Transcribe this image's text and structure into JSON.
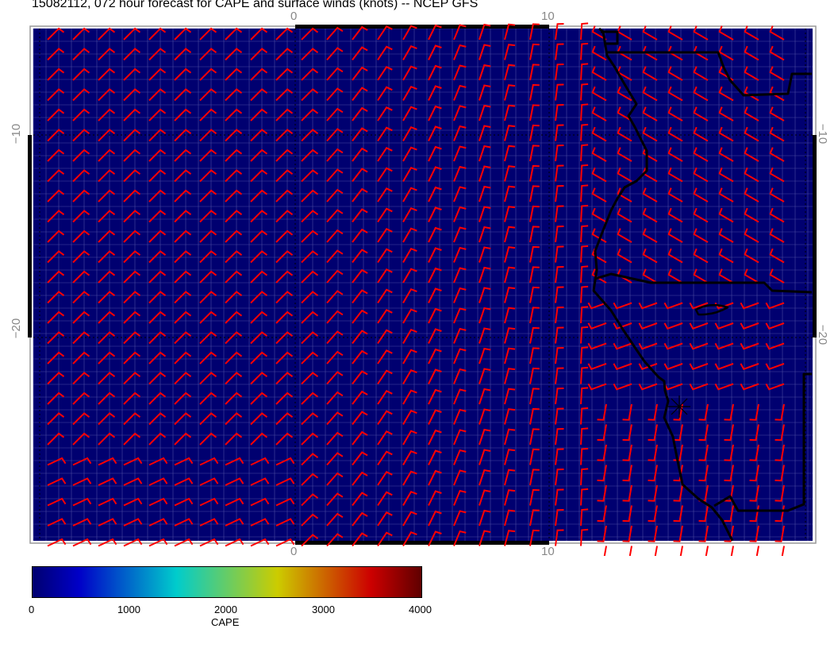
{
  "title": "15082112, 072 hour forecast for CAPE and surface winds (knots) -- NCEP GFS",
  "axes": {
    "top_ticks": [
      "0",
      "10"
    ],
    "bottom_ticks": [
      "0",
      "10"
    ],
    "left_ticks": [
      "−10",
      "−20"
    ],
    "right_ticks": [
      "−10",
      "−20"
    ]
  },
  "colors": {
    "field": "#000070",
    "wind_barbs": "#ff0000",
    "coastlines": "#000000"
  },
  "colorbar": {
    "label": "CAPE",
    "ticks": [
      "0",
      "1000",
      "2000",
      "3000",
      "4000"
    ],
    "range": [
      0,
      4000
    ],
    "stops": [
      "#000070",
      "#0000c8",
      "#00cccc",
      "#cccc00",
      "#cc0000",
      "#600000"
    ]
  }
}
